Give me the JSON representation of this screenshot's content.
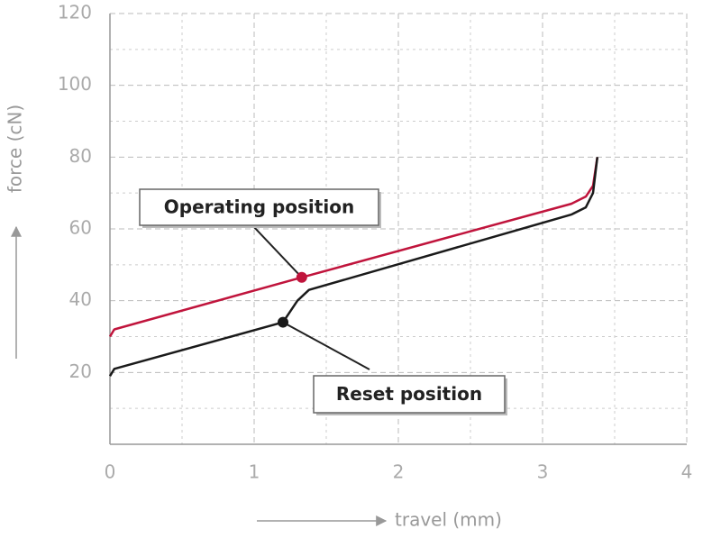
{
  "chart_data": {
    "type": "line",
    "xlabel": "travel (mm)",
    "ylabel": "force (cN)",
    "xlim": [
      0,
      4
    ],
    "xticks": [
      0,
      1,
      2,
      3,
      4
    ],
    "ylim": [
      0,
      120
    ],
    "yticks": [
      20,
      40,
      60,
      80,
      100,
      120
    ],
    "xminor": [
      0.5,
      1.5,
      2.5,
      3.5
    ],
    "yminor": [
      10,
      30,
      50,
      70,
      90,
      110
    ],
    "grid": true,
    "series": [
      {
        "color": "#c0143c",
        "x": [
          0,
          0.03,
          1.33,
          3.2,
          3.3,
          3.35,
          3.38
        ],
        "values": [
          30,
          32,
          46.5,
          67,
          69,
          72,
          80
        ]
      },
      {
        "color": "#1a1a1a",
        "x": [
          0,
          0.03,
          1.2,
          1.3,
          1.38,
          3.2,
          3.3,
          3.35,
          3.38
        ],
        "values": [
          19,
          21,
          34,
          40,
          43,
          64,
          66,
          70,
          80
        ]
      }
    ],
    "annotations": [
      {
        "text": "Operating position",
        "x": 1.33,
        "y": 46.5,
        "color": "#c0143c"
      },
      {
        "text": "Reset position",
        "x": 1.2,
        "y": 34,
        "color": "#1a1a1a"
      }
    ]
  }
}
